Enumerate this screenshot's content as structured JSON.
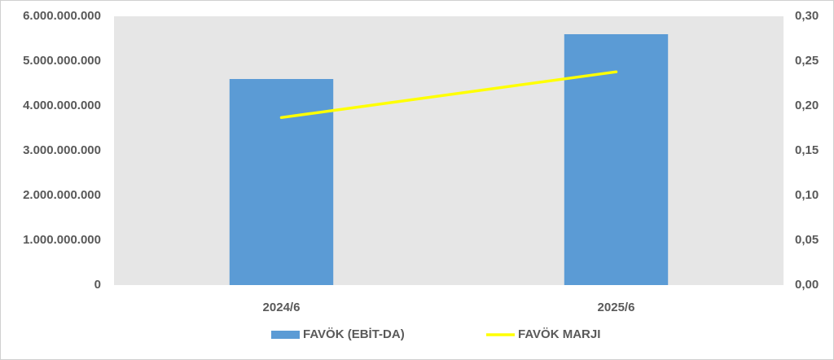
{
  "chart_data": {
    "type": "bar",
    "categories": [
      "2024/6",
      "2025/6"
    ],
    "series": [
      {
        "name": "FAVÖK (EBİT-DA)",
        "color": "#5b9bd5",
        "values": [
          4600000000,
          5600000000
        ]
      },
      {
        "name": "FAVÖK MARJI",
        "color": "#ffff00",
        "type": "line",
        "axis": "y2",
        "values": [
          0.187,
          0.238
        ]
      }
    ],
    "ylim": [
      0,
      6000000000
    ],
    "yticks": [
      0,
      {
        "value": 1000000000,
        "label": "1.000.000.000"
      },
      {
        "value": 2000000000,
        "label": "2.000.000.000"
      },
      {
        "value": 3000000000,
        "label": "3.000.000.000"
      },
      {
        "value": 4000000000,
        "label": "4.000.000.000"
      },
      {
        "value": 5000000000,
        "label": "5.000.000.000"
      },
      {
        "value": 6000000000,
        "label": "6.000.000.000"
      }
    ],
    "y2lim": [
      0,
      0.3
    ],
    "y2ticks": [
      {
        "value": 0,
        "label": "0,00"
      },
      {
        "value": 0.05,
        "label": "0,05"
      },
      {
        "value": 0.1,
        "label": "0,10"
      },
      {
        "value": 0.15,
        "label": "0,15"
      },
      {
        "value": 0.2,
        "label": "0,20"
      },
      {
        "value": 0.25,
        "label": "0,25"
      },
      {
        "value": 0.3,
        "label": "0,30"
      }
    ],
    "grid": false,
    "legend": "bottom"
  }
}
